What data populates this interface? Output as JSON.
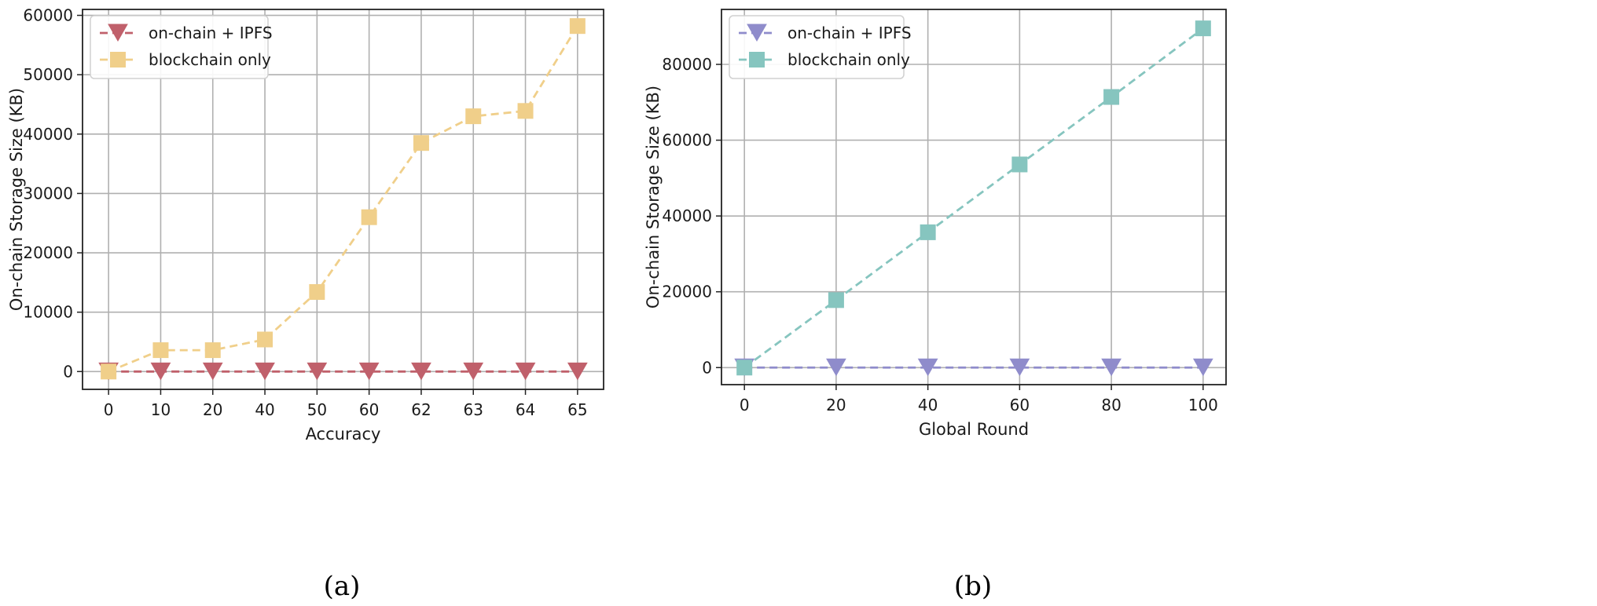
{
  "chart_data": [
    {
      "type": "line",
      "panel_label": "(a)",
      "xlabel": "Accuracy",
      "ylabel": "On-chain Storage Size (KB)",
      "categories": [
        "0",
        "10",
        "20",
        "40",
        "50",
        "60",
        "62",
        "63",
        "64",
        "65"
      ],
      "ylim": [
        -3000,
        61000
      ],
      "yticks": [
        0,
        10000,
        20000,
        30000,
        40000,
        50000,
        60000
      ],
      "grid": true,
      "legend": "top-left",
      "series": [
        {
          "name": "on-chain + IPFS",
          "marker": "triangle-down",
          "color": "#c0606b",
          "values": [
            0,
            0,
            0,
            0,
            0,
            0,
            0,
            0,
            0,
            0
          ]
        },
        {
          "name": "blockchain only",
          "marker": "square",
          "color": "#f0cf8a",
          "values": [
            0,
            3600,
            3600,
            5400,
            13400,
            26000,
            38500,
            43000,
            43900,
            58200
          ]
        }
      ]
    },
    {
      "type": "line",
      "panel_label": "(b)",
      "xlabel": "Global Round",
      "ylabel": "On-chain Storage Size (KB)",
      "x": [
        0,
        20,
        40,
        60,
        80,
        100
      ],
      "xticks": [
        0,
        20,
        40,
        60,
        80,
        100
      ],
      "xlim": [
        -5,
        105
      ],
      "ylim": [
        -4500,
        94500
      ],
      "yticks": [
        0,
        20000,
        40000,
        60000,
        80000
      ],
      "grid": true,
      "legend": "top-left",
      "series": [
        {
          "name": "on-chain + IPFS",
          "marker": "triangle-down",
          "color": "#8f8ccb",
          "values": [
            0,
            0,
            0,
            0,
            0,
            0
          ]
        },
        {
          "name": "blockchain only",
          "marker": "square",
          "color": "#86c5bf",
          "values": [
            0,
            17800,
            35700,
            53600,
            71400,
            89500
          ]
        }
      ]
    }
  ]
}
